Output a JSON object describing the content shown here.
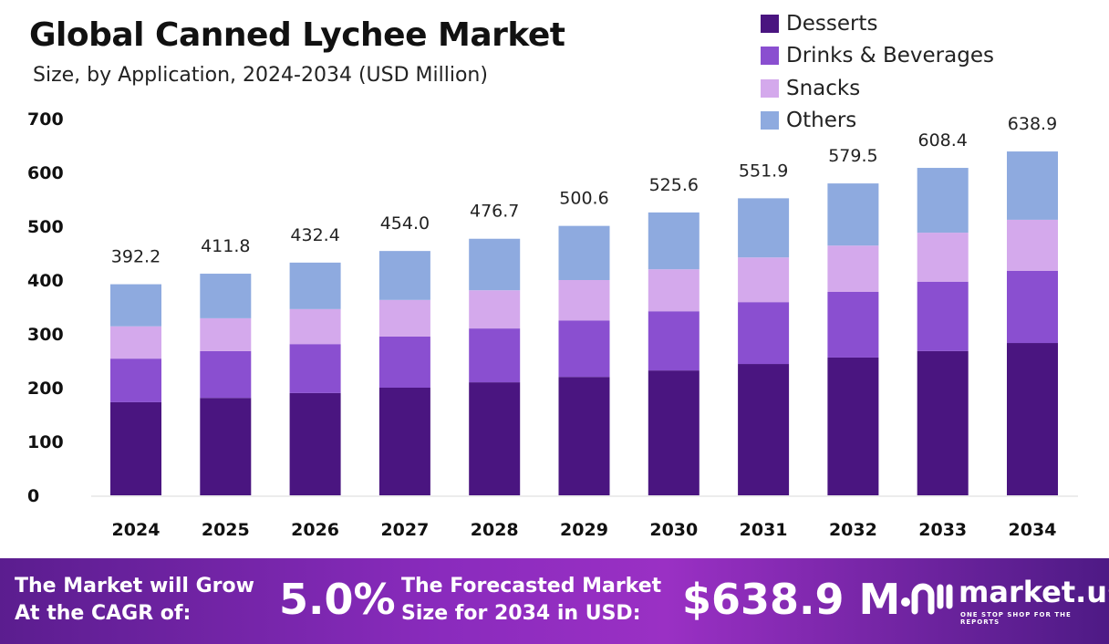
{
  "chart_data": {
    "type": "bar",
    "stacked": true,
    "title": "Global Canned Lychee Market",
    "subtitle": "Size, by Application, 2024-2034 (USD Million)",
    "categories": [
      "2024",
      "2025",
      "2026",
      "2027",
      "2028",
      "2029",
      "2030",
      "2031",
      "2032",
      "2033",
      "2034"
    ],
    "series": [
      {
        "name": "Desserts",
        "color": "#4a1580",
        "values": [
          173,
          181,
          190,
          200,
          210,
          220,
          232,
          244,
          256,
          268,
          283
        ]
      },
      {
        "name": "Drinks & Beverages",
        "color": "#8a4fd0",
        "values": [
          81,
          87,
          91,
          95,
          100,
          105,
          110,
          115,
          122,
          129,
          134
        ]
      },
      {
        "name": "Snacks",
        "color": "#d4a9ec",
        "values": [
          60,
          61,
          65,
          68,
          71,
          75,
          78,
          83,
          86,
          91,
          95
        ]
      },
      {
        "name": "Others",
        "color": "#8eaadf",
        "values": [
          78.2,
          82.8,
          86.4,
          91.0,
          95.7,
          100.6,
          105.6,
          109.9,
          115.5,
          120.4,
          126.9
        ]
      }
    ],
    "totals": [
      "392.2",
      "411.8",
      "432.4",
      "454.0",
      "476.7",
      "500.6",
      "525.6",
      "551.9",
      "579.5",
      "608.4",
      "638.9"
    ],
    "ylim": [
      0,
      700
    ],
    "yticks": [
      "0",
      "100",
      "200",
      "300",
      "400",
      "500",
      "600",
      "700"
    ],
    "grid": false,
    "legend": "top-right"
  },
  "footer": {
    "cagr_label_1": "The Market will Grow",
    "cagr_label_2": "At the CAGR of:",
    "cagr_value": "5.0%",
    "forecast_label_1": "The Forecasted Market",
    "forecast_label_2": "Size for 2034 in USD:",
    "forecast_value": "$638.9 M",
    "logo_name": "market.us",
    "logo_tagline": "ONE STOP SHOP FOR THE REPORTS"
  }
}
